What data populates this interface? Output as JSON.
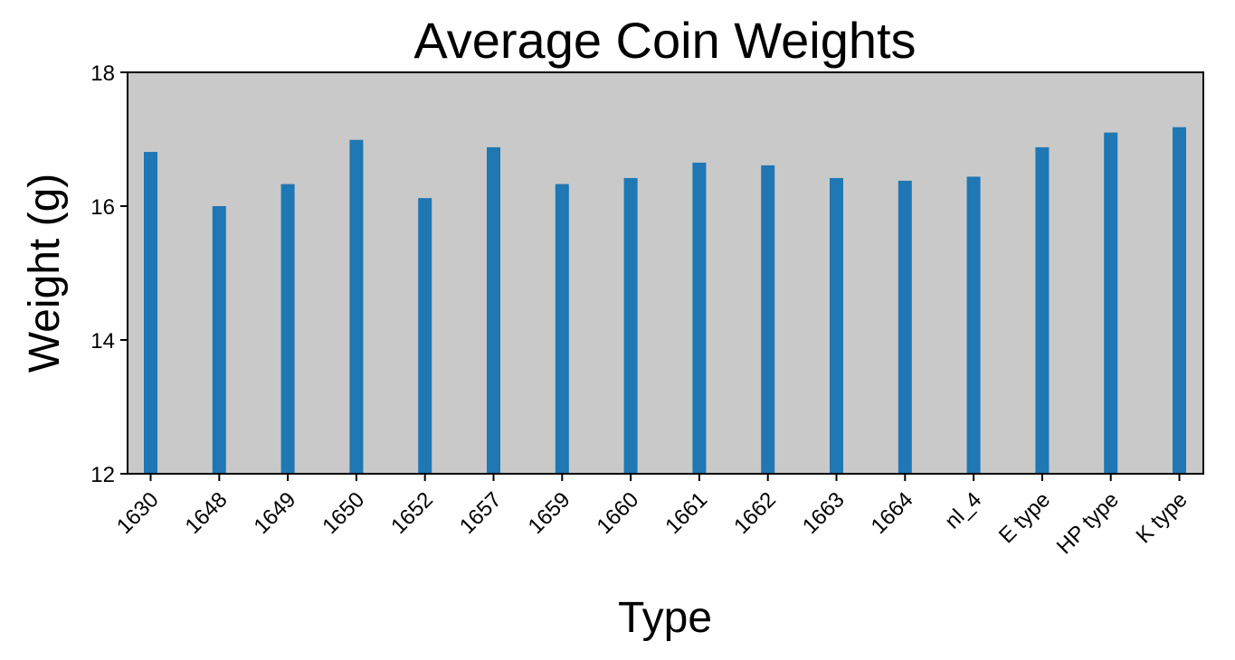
{
  "chart_data": {
    "type": "bar",
    "title": "Average Coin Weights",
    "xlabel": "Type",
    "ylabel": "Weight (g)",
    "categories": [
      "1630",
      "1648",
      "1649",
      "1650",
      "1652",
      "1657",
      "1659",
      "1660",
      "1661",
      "1662",
      "1663",
      "1664",
      "nl_4",
      "E type",
      "HP type",
      "K type"
    ],
    "values": [
      16.81,
      16.0,
      16.33,
      16.99,
      16.12,
      16.88,
      16.33,
      16.42,
      16.65,
      16.61,
      16.42,
      16.38,
      16.44,
      16.88,
      17.1,
      17.18
    ],
    "ylim": [
      12,
      18
    ],
    "yticks": [
      12,
      14,
      16,
      18
    ],
    "grid": false,
    "colors": {
      "bar": "#1f77b4",
      "plot_background": "#c9c9c9",
      "page_background": "#ffffff",
      "axis": "#000000"
    }
  }
}
